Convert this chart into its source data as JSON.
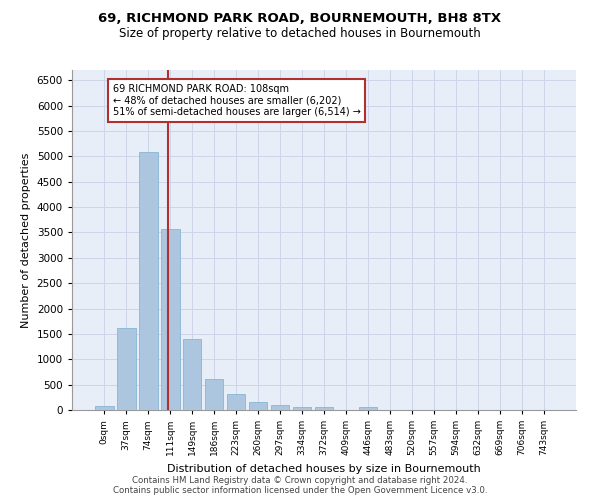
{
  "title1": "69, RICHMOND PARK ROAD, BOURNEMOUTH, BH8 8TX",
  "title2": "Size of property relative to detached houses in Bournemouth",
  "xlabel": "Distribution of detached houses by size in Bournemouth",
  "ylabel": "Number of detached properties",
  "footnote1": "Contains HM Land Registry data © Crown copyright and database right 2024.",
  "footnote2": "Contains public sector information licensed under the Open Government Licence v3.0.",
  "bar_labels": [
    "0sqm",
    "37sqm",
    "74sqm",
    "111sqm",
    "149sqm",
    "186sqm",
    "223sqm",
    "260sqm",
    "297sqm",
    "334sqm",
    "372sqm",
    "409sqm",
    "446sqm",
    "483sqm",
    "520sqm",
    "557sqm",
    "594sqm",
    "632sqm",
    "669sqm",
    "706sqm",
    "743sqm"
  ],
  "bar_values": [
    75,
    1625,
    5075,
    3575,
    1400,
    620,
    310,
    155,
    90,
    55,
    65,
    0,
    65,
    0,
    0,
    0,
    0,
    0,
    0,
    0,
    0
  ],
  "bar_color": "#adc6e0",
  "bar_edge_color": "#7aaed0",
  "grid_color": "#ccd6e8",
  "background_color": "#e8eef8",
  "vline_color": "#b03030",
  "annotation_text": "69 RICHMOND PARK ROAD: 108sqm\n← 48% of detached houses are smaller (6,202)\n51% of semi-detached houses are larger (6,514) →",
  "annotation_box_color": "#b03030",
  "ylim": [
    0,
    6700
  ],
  "yticks": [
    0,
    500,
    1000,
    1500,
    2000,
    2500,
    3000,
    3500,
    4000,
    4500,
    5000,
    5500,
    6000,
    6500
  ]
}
